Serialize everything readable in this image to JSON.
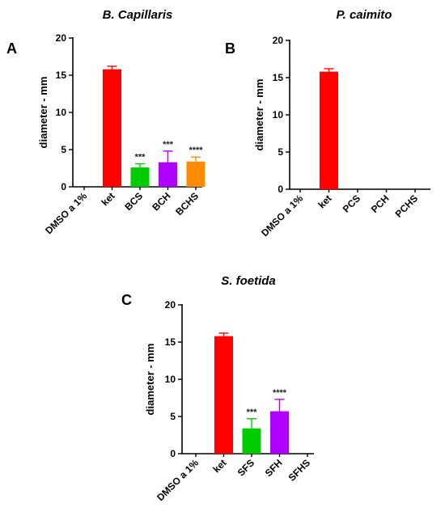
{
  "chart_data": [
    {
      "type": "bar",
      "panel": "A",
      "title": "B. Capillaris",
      "ylabel": "diameter - mm",
      "ylim": [
        0,
        20
      ],
      "yticks": [
        0,
        5,
        10,
        15,
        20
      ],
      "categories": [
        "DMSO a 1%",
        "ket",
        "BCS",
        "BCH",
        "BCHS"
      ],
      "values": [
        0,
        15.8,
        2.6,
        3.3,
        3.4
      ],
      "errors": [
        0,
        0.4,
        0.5,
        1.5,
        0.6
      ],
      "colors": [
        "#000000",
        "#ff0000",
        "#00cc00",
        "#b000ff",
        "#ff8c00"
      ],
      "significance": [
        "",
        "",
        "***",
        "***",
        "****"
      ]
    },
    {
      "type": "bar",
      "panel": "B",
      "title": "P. caimito",
      "ylabel": "diameter - mm",
      "ylim": [
        0,
        20
      ],
      "yticks": [
        0,
        5,
        10,
        15,
        20
      ],
      "categories": [
        "DMSO a 1%",
        "ket",
        "PCS",
        "PCH",
        "PCHS"
      ],
      "values": [
        0,
        15.8,
        0,
        0,
        0
      ],
      "errors": [
        0,
        0.4,
        0,
        0,
        0
      ],
      "colors": [
        "#000000",
        "#ff0000",
        "#00cc00",
        "#b000ff",
        "#ff8c00"
      ],
      "significance": [
        "",
        "",
        "",
        "",
        ""
      ]
    },
    {
      "type": "bar",
      "panel": "C",
      "title": "S. foetida",
      "ylabel": "diameter - mm",
      "ylim": [
        0,
        20
      ],
      "yticks": [
        0,
        5,
        10,
        15,
        20
      ],
      "categories": [
        "DMSO a 1%",
        "ket",
        "SFS",
        "SFH",
        "SFHS"
      ],
      "values": [
        0,
        15.8,
        3.4,
        5.7,
        0
      ],
      "errors": [
        0,
        0.4,
        1.3,
        1.6,
        0
      ],
      "colors": [
        "#000000",
        "#ff0000",
        "#00cc00",
        "#b000ff",
        "#ff8c00"
      ],
      "significance": [
        "",
        "",
        "***",
        "****",
        ""
      ]
    }
  ]
}
